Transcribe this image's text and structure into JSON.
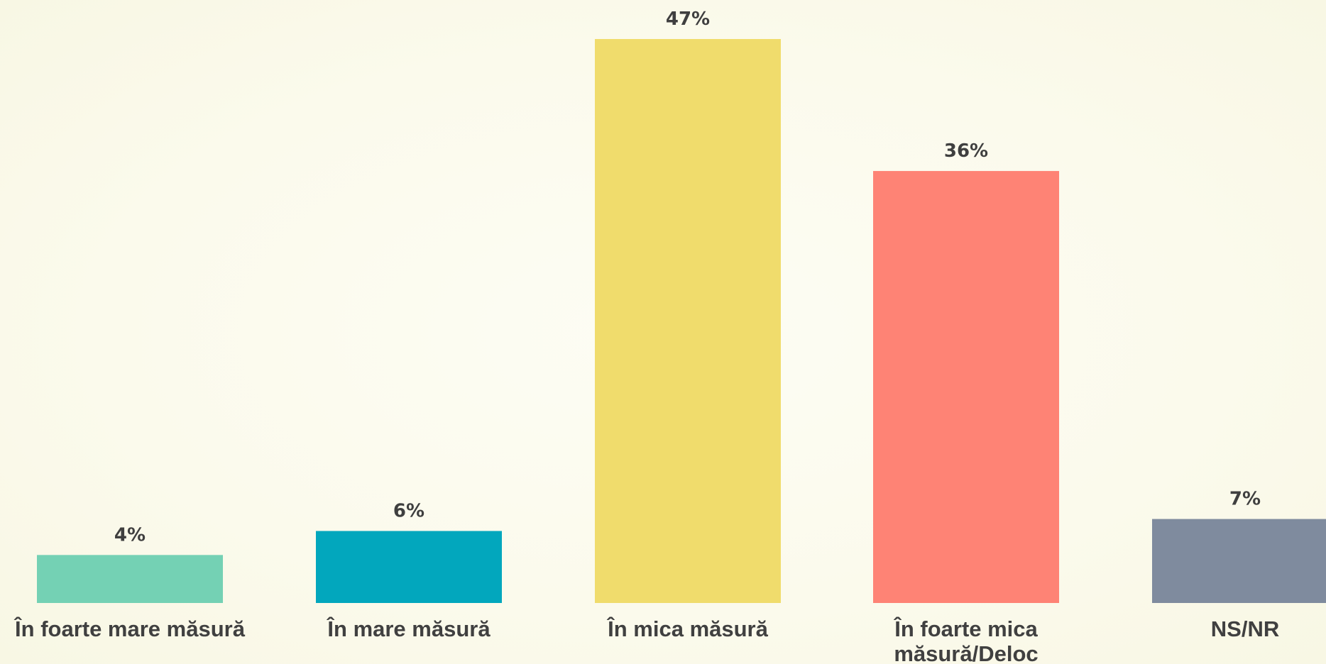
{
  "chart_data": {
    "type": "bar",
    "categories": [
      [
        "În foarte mare măsură"
      ],
      [
        "În mare măsură"
      ],
      [
        "În mica măsură"
      ],
      [
        "În foarte mica",
        "măsură/Deloc"
      ],
      [
        "NS/NR"
      ]
    ],
    "values": [
      4,
      6,
      47,
      36,
      7
    ],
    "data_labels": [
      "4%",
      "6%",
      "47%",
      "36%",
      "7%"
    ],
    "colors": [
      "#74d1b4",
      "#02a7bd",
      "#f0dc6c",
      "#fe8375",
      "#7f8b9e"
    ],
    "ylim": [
      0,
      47
    ],
    "grid": false,
    "legend": "none"
  }
}
